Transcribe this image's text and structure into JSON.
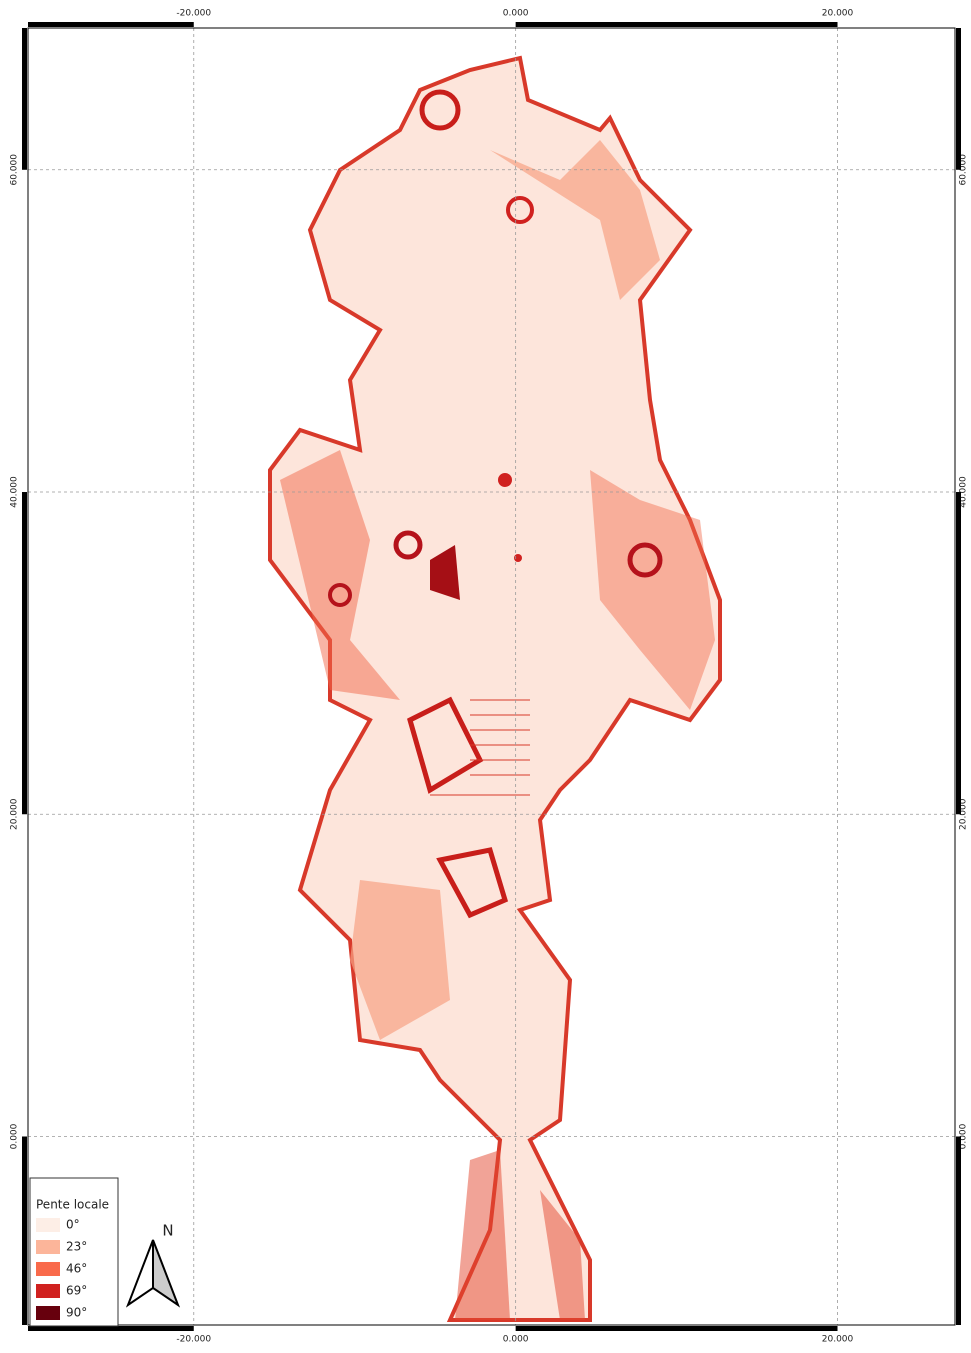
{
  "map": {
    "xlim": [
      -30.3,
      27.3
    ],
    "ylim": [
      -11.7,
      68.8
    ],
    "xticks": [
      {
        "value": -20,
        "label": "-20.000"
      },
      {
        "value": 0,
        "label": "0.000"
      },
      {
        "value": 20,
        "label": "20.000"
      }
    ],
    "yticks": [
      {
        "value": 0,
        "label": "0.000"
      },
      {
        "value": 20,
        "label": "20.000"
      },
      {
        "value": 40,
        "label": "40.000"
      },
      {
        "value": 60,
        "label": "60.000"
      }
    ],
    "grid": true,
    "legend": {
      "title": "Pente locale",
      "entries": [
        {
          "label": "0°",
          "color": "#fdeee6"
        },
        {
          "label": "23°",
          "color": "#fcb59a"
        },
        {
          "label": "46°",
          "color": "#f96a4b"
        },
        {
          "label": "69°",
          "color": "#d0211f"
        },
        {
          "label": "90°",
          "color": "#67000d"
        }
      ]
    },
    "north": "N"
  }
}
